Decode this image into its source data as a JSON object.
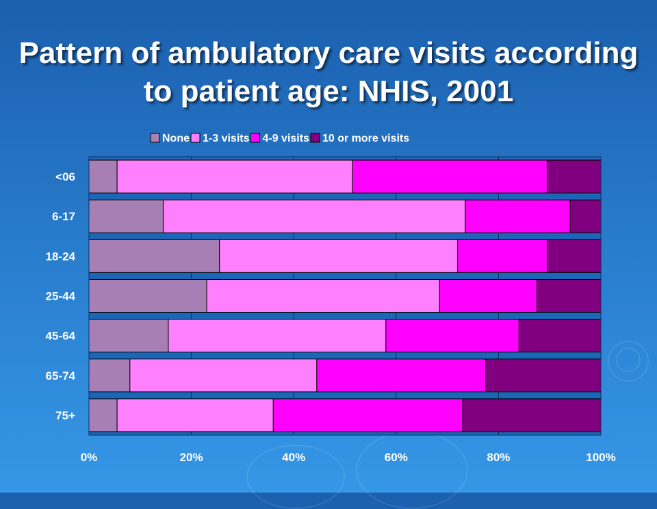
{
  "slide": {
    "title_line1": "Pattern of ambulatory care visits according",
    "title_line2": "to patient age: NHIS, 2001"
  },
  "colors": {
    "plot_background": "#1b66b6",
    "grid": "#0d2f60",
    "label_text": "#ffffff",
    "series": [
      "#a77fb5",
      "#ff80ff",
      "#ff00ff",
      "#800080"
    ]
  },
  "chart_data": {
    "type": "bar",
    "orientation": "horizontal",
    "stacked": "percent",
    "title": "",
    "xlabel": "",
    "ylabel": "",
    "xlim": [
      0,
      100
    ],
    "x_ticks": [
      "0%",
      "20%",
      "40%",
      "60%",
      "80%",
      "100%"
    ],
    "grid": true,
    "legend_position": "top",
    "categories": [
      "<06",
      "6-17",
      "18-24",
      "25-44",
      "45-64",
      "65-74",
      "75+"
    ],
    "series": [
      {
        "name": "None",
        "values": [
          5.5,
          14.5,
          25.5,
          23,
          15.5,
          8,
          5.5
        ]
      },
      {
        "name": "1-3 visits",
        "values": [
          46,
          59,
          46.5,
          45.5,
          42.5,
          36.5,
          30.5
        ]
      },
      {
        "name": "4-9 visits",
        "values": [
          38,
          20.5,
          17.5,
          19,
          26,
          33,
          37
        ]
      },
      {
        "name": "10 or more visits",
        "values": [
          10.5,
          6,
          10.5,
          12.5,
          16,
          22.5,
          27
        ]
      }
    ]
  }
}
